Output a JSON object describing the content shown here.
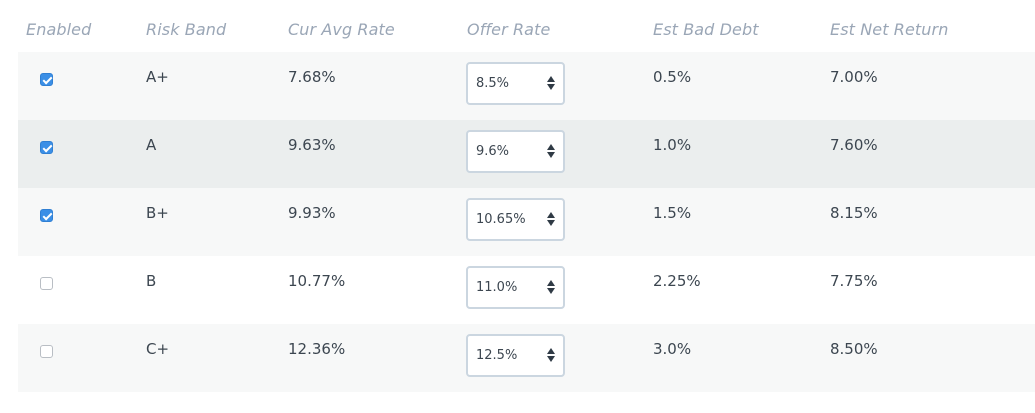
{
  "columns": {
    "enabled": "Enabled",
    "risk_band": "Risk Band",
    "cur_avg_rate": "Cur Avg Rate",
    "offer_rate": "Offer Rate",
    "est_bad_debt": "Est Bad Debt",
    "est_net_return": "Est Net Return"
  },
  "rows": [
    {
      "enabled": true,
      "risk_band": "A+",
      "cur_avg_rate": "7.68%",
      "offer_rate": "8.5%",
      "est_bad_debt": "0.5%",
      "est_net_return": "7.00%"
    },
    {
      "enabled": true,
      "risk_band": "A",
      "cur_avg_rate": "9.63%",
      "offer_rate": "9.6%",
      "est_bad_debt": "1.0%",
      "est_net_return": "7.60%"
    },
    {
      "enabled": true,
      "risk_band": "B+",
      "cur_avg_rate": "9.93%",
      "offer_rate": "10.65%",
      "est_bad_debt": "1.5%",
      "est_net_return": "8.15%"
    },
    {
      "enabled": false,
      "risk_band": "B",
      "cur_avg_rate": "10.77%",
      "offer_rate": "11.0%",
      "est_bad_debt": "2.25%",
      "est_net_return": "7.75%"
    },
    {
      "enabled": false,
      "risk_band": "C+",
      "cur_avg_rate": "12.36%",
      "offer_rate": "12.5%",
      "est_bad_debt": "3.0%",
      "est_net_return": "8.50%"
    }
  ],
  "colors": {
    "checkbox_checked": "#3b8fe6",
    "header_text": "#9aa6b6",
    "row_alt_light": "#f7f8f8",
    "row_alt_dark": "#ebeeee"
  }
}
